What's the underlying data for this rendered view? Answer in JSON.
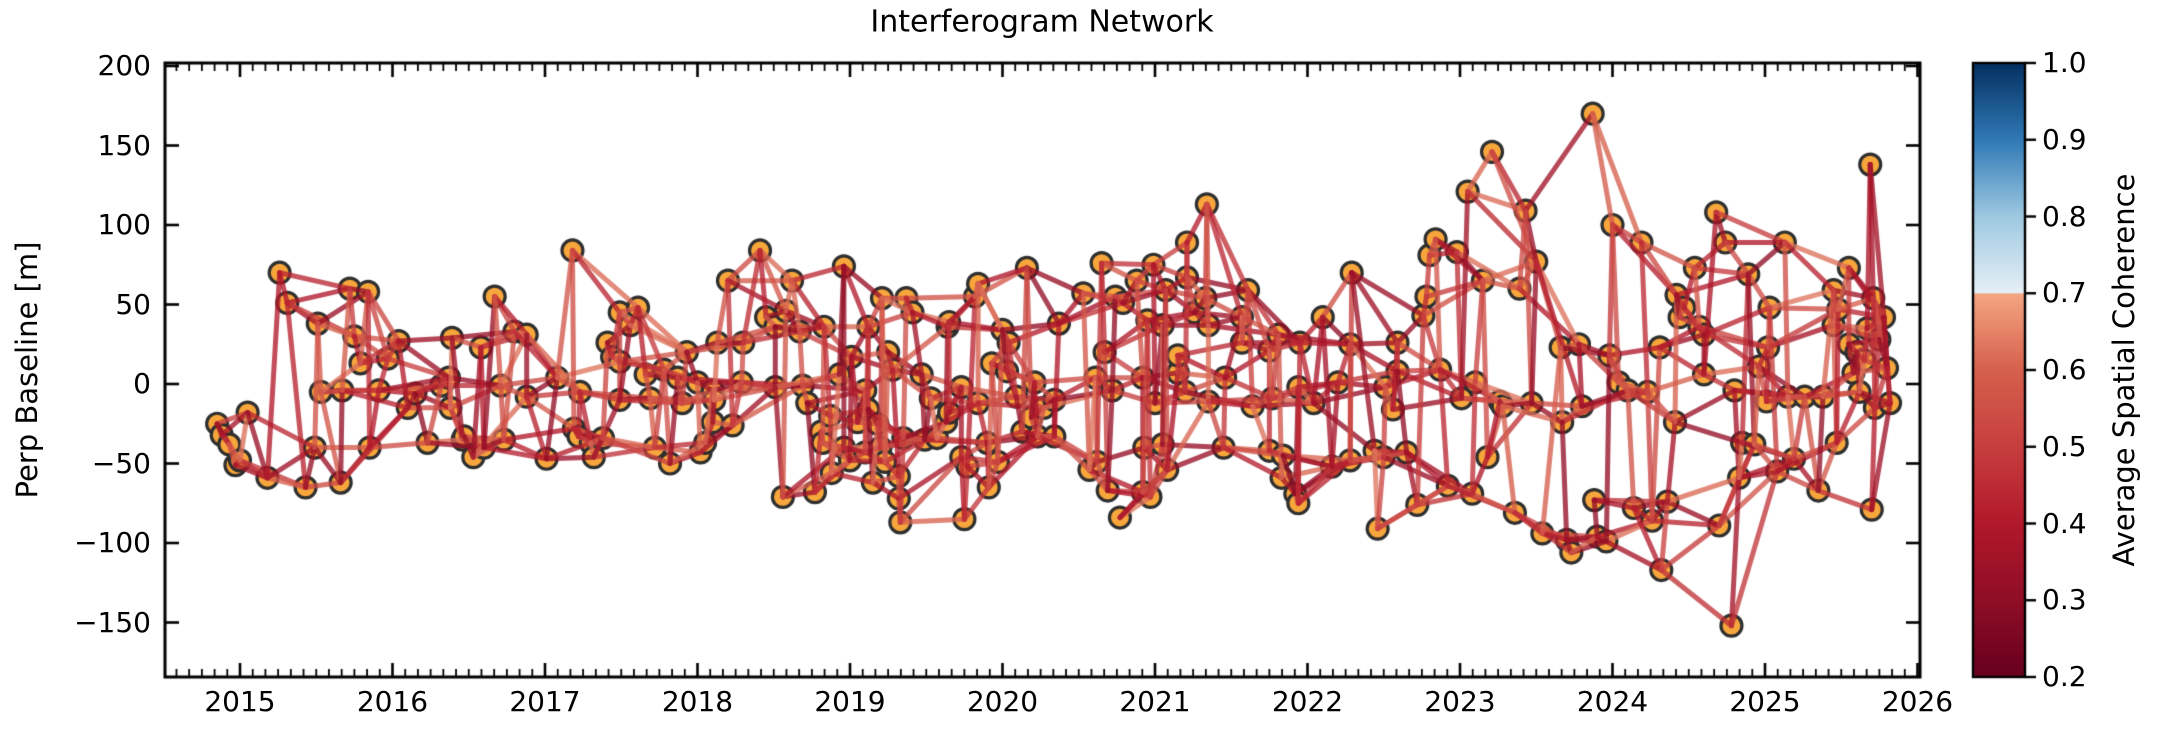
{
  "title": "Interferogram Network",
  "axes": {
    "ylabel": "Perp Baseline [m]",
    "x_ticks": [
      "2015",
      "2016",
      "2017",
      "2018",
      "2019",
      "2020",
      "2021",
      "2022",
      "2023",
      "2024",
      "2025",
      "2026"
    ],
    "x_tick_years": [
      2015,
      2016,
      2017,
      2018,
      2019,
      2020,
      2021,
      2022,
      2023,
      2024,
      2025,
      2026
    ],
    "y_ticks": [
      "200",
      "150",
      "100",
      "50",
      "0",
      "−50",
      "−100",
      "−150"
    ],
    "y_tick_values": [
      200,
      150,
      100,
      50,
      0,
      -50,
      -100,
      -150
    ]
  },
  "colorbar": {
    "label": "Average Spatial Coherence",
    "ticks": [
      "1.0",
      "0.9",
      "0.8",
      "0.7",
      "0.6",
      "0.5",
      "0.4",
      "0.3",
      "0.2"
    ],
    "tick_values": [
      1.0,
      0.9,
      0.8,
      0.7,
      0.6,
      0.5,
      0.4,
      0.3,
      0.2
    ],
    "vmin": 0.2,
    "vmax": 1.0,
    "stops": [
      [
        0.2,
        "#67001f"
      ],
      [
        0.3,
        "#8f0e26"
      ],
      [
        0.4,
        "#b2182b"
      ],
      [
        0.5,
        "#c73f3f"
      ],
      [
        0.6,
        "#d6604d"
      ],
      [
        0.699,
        "#f4a582"
      ],
      [
        0.701,
        "#e6f0f7"
      ],
      [
        0.8,
        "#9ec9e1"
      ],
      [
        0.9,
        "#3079b6"
      ],
      [
        1.0,
        "#053061"
      ]
    ]
  },
  "style": {
    "node_fill": "#f7a63c",
    "node_edge": "#2f2f2f",
    "node_radius": 10.5,
    "node_edge_width": 3.2,
    "edge_width": 5,
    "edge_alpha": 0.78,
    "frame_color": "#000000",
    "background": "#ffffff"
  },
  "chart_data": {
    "type": "scatter",
    "subtype": "interferogram-network",
    "title": "Interferogram Network",
    "xlabel": "",
    "ylabel": "Perp Baseline [m]",
    "xlim": [
      2014.51,
      2026.02
    ],
    "ylim": [
      -184,
      202
    ],
    "grid": false,
    "legend": "colorbar: Average Spatial Coherence (RdBu, 0.2-1.0, break at 0.7)",
    "nodes_format": "[decimal_year, perp_baseline_m] per SAR acquisition",
    "nodes": [
      [
        2014.85,
        -25
      ],
      [
        2014.88,
        -32
      ],
      [
        2014.93,
        -38
      ],
      [
        2014.97,
        -51
      ],
      [
        2015.0,
        -48
      ],
      [
        2015.05,
        -18
      ],
      [
        2015.18,
        -59
      ],
      [
        2015.26,
        70
      ],
      [
        2015.31,
        51
      ],
      [
        2015.43,
        -65
      ],
      [
        2015.49,
        -40
      ],
      [
        2015.51,
        38
      ],
      [
        2015.53,
        -5
      ],
      [
        2015.66,
        -62
      ],
      [
        2015.67,
        -4
      ],
      [
        2015.72,
        60
      ],
      [
        2015.75,
        30
      ],
      [
        2015.79,
        13
      ],
      [
        2015.84,
        58
      ],
      [
        2015.85,
        -40
      ],
      [
        2015.91,
        -4
      ],
      [
        2015.97,
        16
      ],
      [
        2016.04,
        27
      ],
      [
        2016.1,
        -15
      ],
      [
        2016.15,
        -6
      ],
      [
        2016.23,
        -37
      ],
      [
        2016.32,
        -1
      ],
      [
        2016.37,
        4
      ],
      [
        2016.38,
        -15
      ],
      [
        2016.39,
        29
      ],
      [
        2016.46,
        -35
      ],
      [
        2016.47,
        -33
      ],
      [
        2016.53,
        -46
      ],
      [
        2016.58,
        23
      ],
      [
        2016.6,
        -40
      ],
      [
        2016.67,
        55
      ],
      [
        2016.71,
        -1
      ],
      [
        2016.73,
        -35
      ],
      [
        2016.8,
        33
      ],
      [
        2016.88,
        31
      ],
      [
        2016.88,
        -8
      ],
      [
        2017.01,
        -47
      ],
      [
        2017.08,
        4
      ],
      [
        2017.18,
        84
      ],
      [
        2017.19,
        -28
      ],
      [
        2017.22,
        -33
      ],
      [
        2017.23,
        -5
      ],
      [
        2017.3,
        -37
      ],
      [
        2017.32,
        -46
      ],
      [
        2017.38,
        -34
      ],
      [
        2017.41,
        26
      ],
      [
        2017.44,
        17
      ],
      [
        2017.49,
        45
      ],
      [
        2017.49,
        14
      ],
      [
        2017.49,
        -10
      ],
      [
        2017.56,
        37
      ],
      [
        2017.61,
        48
      ],
      [
        2017.66,
        6
      ],
      [
        2017.69,
        -9
      ],
      [
        2017.72,
        -40
      ],
      [
        2017.78,
        9
      ],
      [
        2017.82,
        -50
      ],
      [
        2017.87,
        4
      ],
      [
        2017.9,
        -12
      ],
      [
        2017.93,
        20
      ],
      [
        2018.0,
        1
      ],
      [
        2018.02,
        -43
      ],
      [
        2018.05,
        -37
      ],
      [
        2018.1,
        -4
      ],
      [
        2018.1,
        -24
      ],
      [
        2018.11,
        -10
      ],
      [
        2018.13,
        26
      ],
      [
        2018.2,
        65
      ],
      [
        2018.23,
        -26
      ],
      [
        2018.29,
        1
      ],
      [
        2018.3,
        26
      ],
      [
        2018.41,
        84
      ],
      [
        2018.45,
        42
      ],
      [
        2018.51,
        36
      ],
      [
        2018.51,
        -2
      ],
      [
        2018.56,
        -71
      ],
      [
        2018.58,
        46
      ],
      [
        2018.62,
        65
      ],
      [
        2018.67,
        33
      ],
      [
        2018.69,
        -1
      ],
      [
        2018.72,
        -12
      ],
      [
        2018.77,
        -68
      ],
      [
        2018.81,
        -30
      ],
      [
        2018.82,
        -37
      ],
      [
        2018.83,
        36
      ],
      [
        2018.87,
        -20
      ],
      [
        2018.88,
        -56
      ],
      [
        2018.93,
        6
      ],
      [
        2018.96,
        74
      ],
      [
        2018.96,
        -40
      ],
      [
        2019.0,
        -48
      ],
      [
        2019.01,
        17
      ],
      [
        2019.05,
        -24
      ],
      [
        2019.1,
        -4
      ],
      [
        2019.1,
        -43
      ],
      [
        2019.12,
        36
      ],
      [
        2019.12,
        -16
      ],
      [
        2019.15,
        -62
      ],
      [
        2019.18,
        -25
      ],
      [
        2019.2,
        -40
      ],
      [
        2019.21,
        54
      ],
      [
        2019.23,
        -49
      ],
      [
        2019.25,
        20
      ],
      [
        2019.28,
        9
      ],
      [
        2019.32,
        -58
      ],
      [
        2019.32,
        -72
      ],
      [
        2019.33,
        -87
      ],
      [
        2019.35,
        -34
      ],
      [
        2019.37,
        54
      ],
      [
        2019.41,
        45
      ],
      [
        2019.47,
        6
      ],
      [
        2019.49,
        -35
      ],
      [
        2019.53,
        -9
      ],
      [
        2019.57,
        -34
      ],
      [
        2019.63,
        -24
      ],
      [
        2019.64,
        36
      ],
      [
        2019.65,
        39
      ],
      [
        2019.65,
        -18
      ],
      [
        2019.73,
        -2
      ],
      [
        2019.73,
        -46
      ],
      [
        2019.75,
        -85
      ],
      [
        2019.77,
        -52
      ],
      [
        2019.82,
        55
      ],
      [
        2019.84,
        63
      ],
      [
        2019.84,
        -12
      ],
      [
        2019.9,
        -37
      ],
      [
        2019.91,
        -65
      ],
      [
        2019.93,
        13
      ],
      [
        2019.97,
        -49
      ],
      [
        2020.0,
        34
      ],
      [
        2020.03,
        8
      ],
      [
        2020.04,
        26
      ],
      [
        2020.09,
        -8
      ],
      [
        2020.13,
        -30
      ],
      [
        2020.16,
        73
      ],
      [
        2020.19,
        -21
      ],
      [
        2020.21,
        1
      ],
      [
        2020.23,
        -33
      ],
      [
        2020.27,
        -15
      ],
      [
        2020.34,
        -10
      ],
      [
        2020.34,
        -33
      ],
      [
        2020.37,
        38
      ],
      [
        2020.53,
        57
      ],
      [
        2020.57,
        -54
      ],
      [
        2020.61,
        4
      ],
      [
        2020.62,
        -49
      ],
      [
        2020.65,
        76
      ],
      [
        2020.67,
        20
      ],
      [
        2020.69,
        -67
      ],
      [
        2020.72,
        -4
      ],
      [
        2020.74,
        55
      ],
      [
        2020.77,
        -84
      ],
      [
        2020.79,
        51
      ],
      [
        2020.88,
        65
      ],
      [
        2020.92,
        4
      ],
      [
        2020.92,
        -68
      ],
      [
        2020.93,
        -40
      ],
      [
        2020.95,
        40
      ],
      [
        2020.97,
        -71
      ],
      [
        2020.99,
        75
      ],
      [
        2021.0,
        -12
      ],
      [
        2021.05,
        37
      ],
      [
        2021.05,
        -38
      ],
      [
        2021.07,
        59
      ],
      [
        2021.08,
        -54
      ],
      [
        2021.15,
        7
      ],
      [
        2021.15,
        18
      ],
      [
        2021.2,
        -5
      ],
      [
        2021.21,
        89
      ],
      [
        2021.21,
        67
      ],
      [
        2021.26,
        45
      ],
      [
        2021.33,
        54
      ],
      [
        2021.34,
        113
      ],
      [
        2021.35,
        37
      ],
      [
        2021.35,
        -11
      ],
      [
        2021.45,
        -40
      ],
      [
        2021.46,
        4
      ],
      [
        2021.57,
        42
      ],
      [
        2021.57,
        26
      ],
      [
        2021.61,
        59
      ],
      [
        2021.64,
        -14
      ],
      [
        2021.75,
        -42
      ],
      [
        2021.75,
        21
      ],
      [
        2021.77,
        -9
      ],
      [
        2021.81,
        31
      ],
      [
        2021.83,
        -59
      ],
      [
        2021.84,
        -45
      ],
      [
        2021.92,
        -69
      ],
      [
        2021.94,
        -2
      ],
      [
        2021.94,
        -75
      ],
      [
        2021.95,
        26
      ],
      [
        2022.04,
        -12
      ],
      [
        2022.1,
        42
      ],
      [
        2022.16,
        -52
      ],
      [
        2022.2,
        1
      ],
      [
        2022.28,
        25
      ],
      [
        2022.28,
        -48
      ],
      [
        2022.29,
        70
      ],
      [
        2022.44,
        -42
      ],
      [
        2022.46,
        -91
      ],
      [
        2022.5,
        -46
      ],
      [
        2022.51,
        -2
      ],
      [
        2022.56,
        -16
      ],
      [
        2022.59,
        26
      ],
      [
        2022.59,
        8
      ],
      [
        2022.65,
        -43
      ],
      [
        2022.72,
        -76
      ],
      [
        2022.76,
        43
      ],
      [
        2022.78,
        55
      ],
      [
        2022.8,
        81
      ],
      [
        2022.84,
        91
      ],
      [
        2022.87,
        9
      ],
      [
        2022.92,
        -64
      ],
      [
        2022.98,
        83
      ],
      [
        2023.01,
        -9
      ],
      [
        2023.05,
        121
      ],
      [
        2023.08,
        -69
      ],
      [
        2023.1,
        1
      ],
      [
        2023.15,
        65
      ],
      [
        2023.18,
        -46
      ],
      [
        2023.21,
        146
      ],
      [
        2023.26,
        -11
      ],
      [
        2023.28,
        -14
      ],
      [
        2023.36,
        -81
      ],
      [
        2023.39,
        60
      ],
      [
        2023.43,
        109
      ],
      [
        2023.47,
        -12
      ],
      [
        2023.5,
        77
      ],
      [
        2023.54,
        -94
      ],
      [
        2023.66,
        23
      ],
      [
        2023.67,
        -24
      ],
      [
        2023.7,
        -98
      ],
      [
        2023.73,
        -106
      ],
      [
        2023.78,
        25
      ],
      [
        2023.8,
        -14
      ],
      [
        2023.87,
        170
      ],
      [
        2023.88,
        -73
      ],
      [
        2023.9,
        -96
      ],
      [
        2023.96,
        -99
      ],
      [
        2023.98,
        18
      ],
      [
        2024.0,
        100
      ],
      [
        2024.04,
        1
      ],
      [
        2024.1,
        -4
      ],
      [
        2024.14,
        -78
      ],
      [
        2024.19,
        89
      ],
      [
        2024.23,
        -5
      ],
      [
        2024.26,
        -86
      ],
      [
        2024.31,
        23
      ],
      [
        2024.32,
        -117
      ],
      [
        2024.36,
        -74
      ],
      [
        2024.41,
        -24
      ],
      [
        2024.42,
        56
      ],
      [
        2024.44,
        42
      ],
      [
        2024.47,
        48
      ],
      [
        2024.54,
        73
      ],
      [
        2024.57,
        36
      ],
      [
        2024.6,
        31
      ],
      [
        2024.6,
        6
      ],
      [
        2024.68,
        108
      ],
      [
        2024.7,
        -89
      ],
      [
        2024.74,
        89
      ],
      [
        2024.78,
        -152
      ],
      [
        2024.8,
        -4
      ],
      [
        2024.83,
        -59
      ],
      [
        2024.85,
        -37
      ],
      [
        2024.89,
        69
      ],
      [
        2024.93,
        -38
      ],
      [
        2024.96,
        11
      ],
      [
        2025.01,
        -11
      ],
      [
        2025.02,
        23
      ],
      [
        2025.03,
        48
      ],
      [
        2025.08,
        -55
      ],
      [
        2025.13,
        89
      ],
      [
        2025.15,
        -8
      ],
      [
        2025.19,
        -47
      ],
      [
        2025.26,
        -8
      ],
      [
        2025.35,
        -67
      ],
      [
        2025.38,
        -8
      ],
      [
        2025.45,
        59
      ],
      [
        2025.45,
        37
      ],
      [
        2025.47,
        -37
      ],
      [
        2025.48,
        47
      ],
      [
        2025.55,
        73
      ],
      [
        2025.55,
        25
      ],
      [
        2025.58,
        7
      ],
      [
        2025.6,
        20
      ],
      [
        2025.62,
        -5
      ],
      [
        2025.65,
        15
      ],
      [
        2025.67,
        35
      ],
      [
        2025.69,
        138
      ],
      [
        2025.7,
        -79
      ],
      [
        2025.71,
        54
      ],
      [
        2025.72,
        -15
      ],
      [
        2025.75,
        28
      ],
      [
        2025.78,
        42
      ],
      [
        2025.8,
        10
      ],
      [
        2025.82,
        -12
      ]
    ],
    "edge_rule": {
      "description": "interferogram pairs: each acquisition links to its 2-3 nearest-in-time later acquisitions (preferring small baseline difference), plus sequential chain",
      "max_dt_years": 0.48,
      "chain_max_dt_years": 0.6,
      "max_dbaseline_m": 130,
      "base_links": 2,
      "extra_link_every": 4
    },
    "coherence_range": [
      0.3,
      0.63
    ]
  }
}
